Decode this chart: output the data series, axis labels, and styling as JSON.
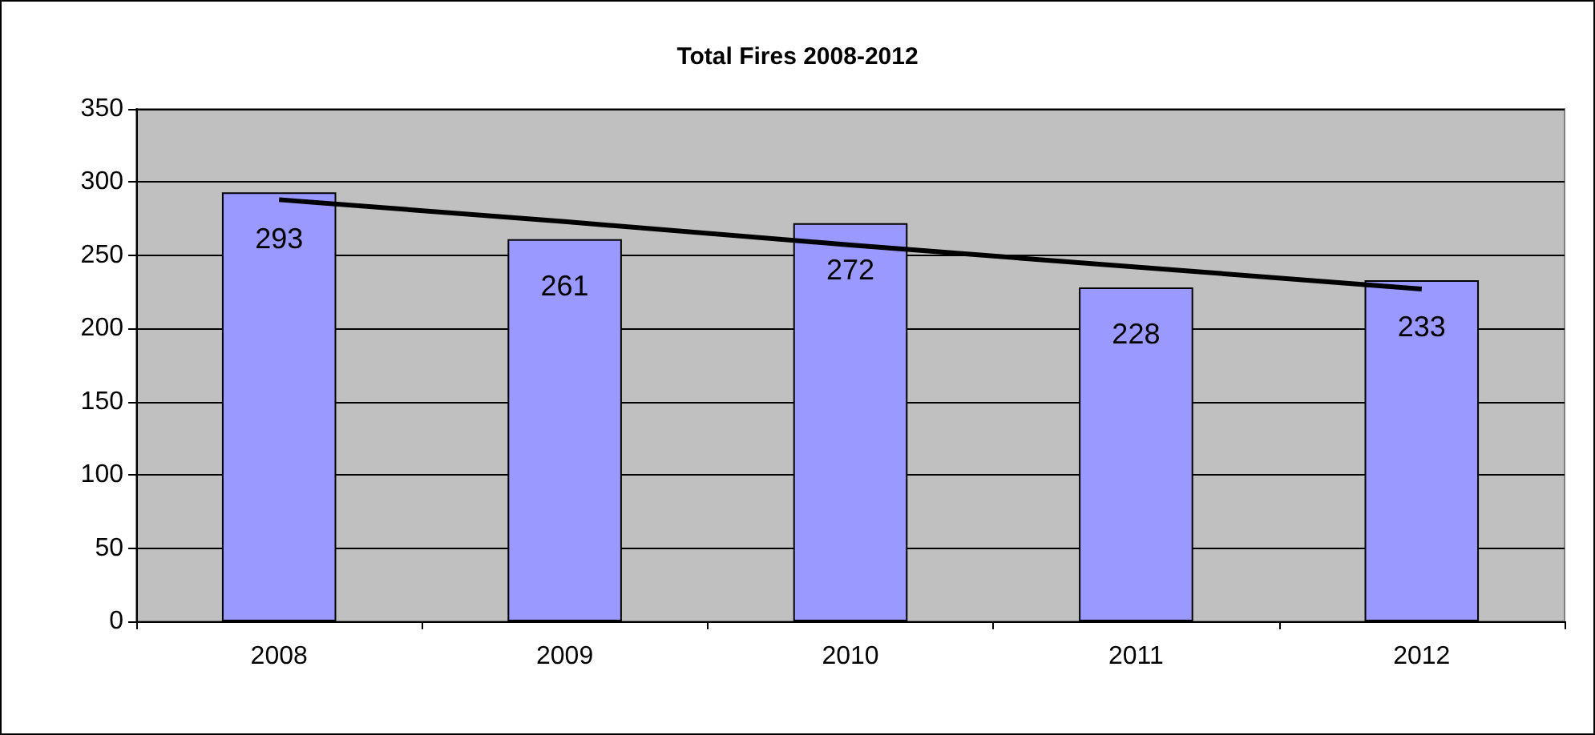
{
  "chart_data": {
    "type": "bar",
    "title": "Total Fires 2008-2012",
    "categories": [
      "2008",
      "2009",
      "2010",
      "2011",
      "2012"
    ],
    "series": [
      {
        "color": "#9999ff",
        "values": [
          293,
          261,
          272,
          228,
          233
        ],
        "value_labels": [
          "293",
          "261",
          "272",
          "228",
          "233"
        ]
      },
      {
        "type": "line",
        "color": "#000000",
        "values": [
          288,
          273,
          257,
          242,
          227
        ]
      }
    ],
    "ylim": [
      0,
      350
    ],
    "yticks": [
      0,
      50,
      100,
      150,
      200,
      250,
      300,
      350
    ],
    "grid": "y",
    "marker": "none"
  }
}
